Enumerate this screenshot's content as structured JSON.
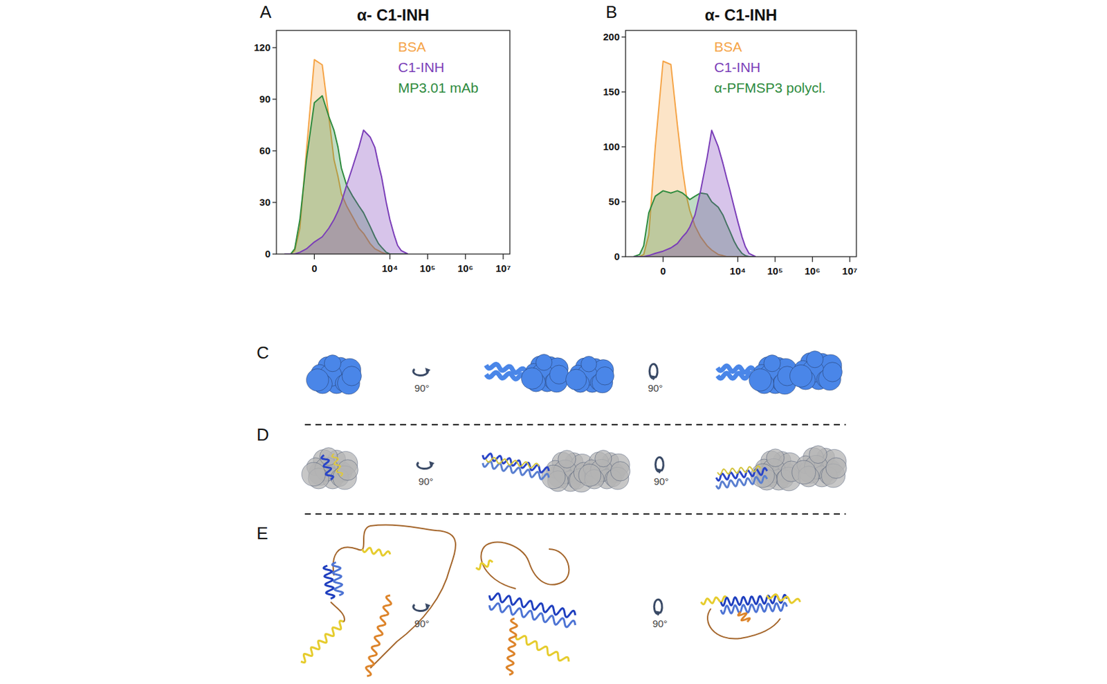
{
  "chart_data": [
    {
      "type": "area",
      "title": "α- C1-INH",
      "panel": "A",
      "x": [
        -600,
        -400,
        -300,
        -200,
        -100,
        0,
        100,
        200,
        300,
        400,
        500,
        700,
        1000,
        1500,
        2000,
        3000,
        4000,
        5000,
        6000,
        8000,
        10000,
        13000,
        16000,
        20000,
        30000
      ],
      "series": [
        {
          "name": "BSA",
          "color": "#f5a447",
          "values": [
            0,
            0,
            2,
            15,
            60,
            113,
            110,
            80,
            55,
            45,
            35,
            28,
            22,
            15,
            12,
            6,
            3,
            2,
            1,
            0,
            0,
            0,
            0,
            0,
            0
          ]
        },
        {
          "name": "C1-INH",
          "color": "#7a3db8",
          "values": [
            0,
            0,
            0,
            1,
            3,
            7,
            10,
            15,
            20,
            25,
            30,
            40,
            50,
            62,
            72,
            68,
            62,
            52,
            45,
            30,
            20,
            11,
            5,
            2,
            0
          ]
        },
        {
          "name": "MP3.01 mAb",
          "color": "#2e8b3e",
          "values": [
            0,
            0,
            3,
            20,
            55,
            88,
            92,
            80,
            72,
            62,
            50,
            40,
            34,
            28,
            24,
            16,
            10,
            6,
            4,
            1,
            0,
            0,
            0,
            0,
            0
          ]
        }
      ],
      "xlim": [
        -1000,
        15000000
      ],
      "xticks": [
        0,
        {
          "value": 10000,
          "label": "10⁴"
        },
        {
          "value": 100000,
          "label": "10⁵"
        },
        {
          "value": 1000000,
          "label": "10⁶"
        },
        {
          "value": 10000000,
          "label": "10⁷"
        }
      ],
      "ylim": [
        0,
        130
      ],
      "yticks": [
        0,
        30,
        60,
        90,
        120
      ],
      "legend": "upper right",
      "grid": false
    },
    {
      "type": "area",
      "title": "α- C1-INH",
      "panel": "B",
      "x": [
        -600,
        -400,
        -300,
        -200,
        -100,
        0,
        100,
        200,
        300,
        400,
        500,
        700,
        1000,
        1500,
        2000,
        3000,
        4000,
        5000,
        6000,
        8000,
        10000,
        13000,
        16000,
        20000,
        30000
      ],
      "series": [
        {
          "name": "BSA",
          "color": "#f5a447",
          "values": [
            0,
            0,
            2,
            20,
            100,
            178,
            175,
            120,
            80,
            55,
            42,
            28,
            18,
            10,
            6,
            2,
            1,
            0,
            0,
            0,
            0,
            0,
            0,
            0,
            0
          ]
        },
        {
          "name": "C1-INH",
          "color": "#7a3db8",
          "values": [
            0,
            0,
            0,
            1,
            3,
            5,
            8,
            12,
            18,
            22,
            27,
            38,
            60,
            90,
            115,
            100,
            85,
            72,
            62,
            45,
            32,
            18,
            9,
            3,
            0
          ]
        },
        {
          "name": "α-PFMSP3 polycl.",
          "color": "#2e8b3e",
          "values": [
            0,
            2,
            10,
            40,
            55,
            60,
            58,
            60,
            58,
            55,
            52,
            55,
            58,
            57,
            50,
            45,
            38,
            30,
            24,
            14,
            8,
            3,
            1,
            0,
            0
          ]
        }
      ],
      "xlim": [
        -1000,
        15000000
      ],
      "xticks": [
        0,
        {
          "value": 10000,
          "label": "10⁴"
        },
        {
          "value": 100000,
          "label": "10⁵"
        },
        {
          "value": 1000000,
          "label": "10⁶"
        },
        {
          "value": 10000000,
          "label": "10⁷"
        }
      ],
      "ylim": [
        0,
        206
      ],
      "yticks": [
        0,
        50,
        100,
        150,
        200
      ],
      "legend": "upper right",
      "grid": false
    }
  ],
  "structures": [
    {
      "label": "C",
      "rotations": [
        "90°",
        "90°"
      ]
    },
    {
      "label": "D",
      "rotations": [
        "90°",
        "90°"
      ]
    },
    {
      "label": "E",
      "rotations": [
        "90°",
        "90°"
      ]
    }
  ]
}
